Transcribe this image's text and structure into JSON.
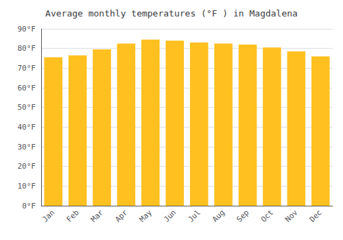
{
  "chart_data": {
    "type": "bar",
    "title": "Average monthly temperatures (°F ) in Magdalena",
    "categories": [
      "Jan",
      "Feb",
      "Mar",
      "Apr",
      "May",
      "Jun",
      "Jul",
      "Aug",
      "Sep",
      "Oct",
      "Nov",
      "Dec"
    ],
    "values": [
      75.5,
      76.5,
      79.5,
      82.5,
      84.5,
      84.0,
      83.0,
      82.5,
      82.0,
      80.5,
      78.5,
      76.0
    ],
    "color": "#FFC020",
    "ylim": [
      0,
      90
    ],
    "yticks": [
      {
        "value": 0,
        "label": "0°F"
      },
      {
        "value": 10,
        "label": "10°F"
      },
      {
        "value": 20,
        "label": "20°F"
      },
      {
        "value": 30,
        "label": "30°F"
      },
      {
        "value": 40,
        "label": "40°F"
      },
      {
        "value": 50,
        "label": "50°F"
      },
      {
        "value": 60,
        "label": "60°F"
      },
      {
        "value": 70,
        "label": "70°F"
      },
      {
        "value": 80,
        "label": "80°F"
      },
      {
        "value": 90,
        "label": "90°F"
      }
    ],
    "grid": true
  }
}
